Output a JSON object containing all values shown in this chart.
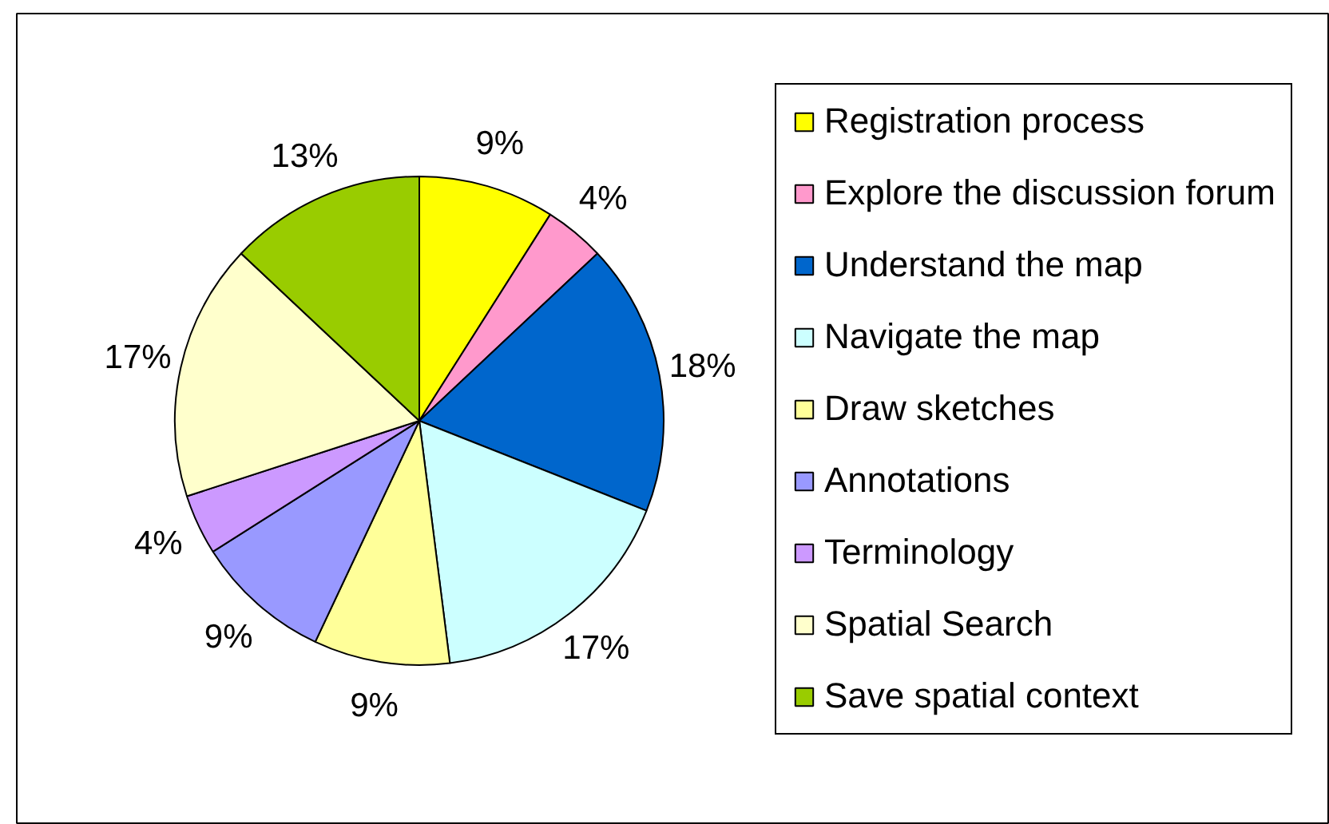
{
  "chart_data": {
    "type": "pie",
    "categories": [
      "Registration process",
      "Explore the discussion forum",
      "Understand the map",
      "Navigate the map",
      "Draw sketches",
      "Annotations",
      "Terminology",
      "Spatial Search",
      "Save spatial context"
    ],
    "values": [
      9,
      4,
      18,
      17,
      9,
      9,
      4,
      17,
      13
    ],
    "value_labels": [
      "9%",
      "4%",
      "18%",
      "17%",
      "9%",
      "9%",
      "4%",
      "17%",
      "13%"
    ],
    "colors": [
      "#ffff00",
      "#ff99cc",
      "#0066cc",
      "#ccffff",
      "#ffff99",
      "#9999ff",
      "#cc99ff",
      "#ffffcc",
      "#99cc00"
    ],
    "legend": "right"
  }
}
